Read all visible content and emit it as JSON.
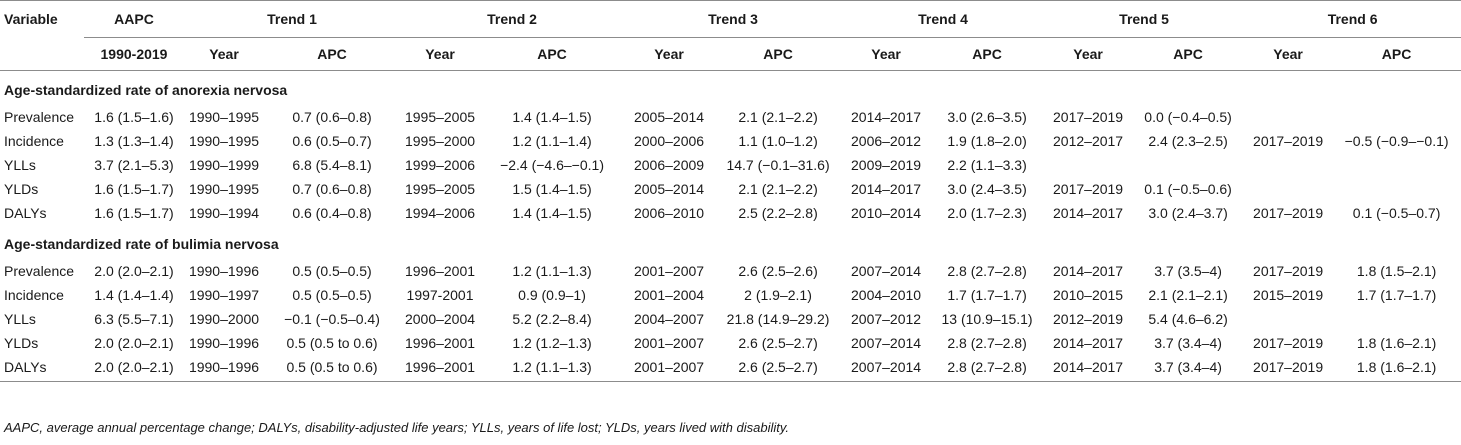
{
  "header": {
    "variable": "Variable",
    "aapc": "AAPC",
    "aapc_period": "1990-2019",
    "trends": [
      "Trend 1",
      "Trend 2",
      "Trend 3",
      "Trend 4",
      "Trend 5",
      "Trend 6"
    ],
    "year": "Year",
    "apc": "APC"
  },
  "sections": [
    {
      "title": "Age-standardized rate of anorexia nervosa",
      "rows": [
        {
          "variable": "Prevalence",
          "aapc": "1.6 (1.5–1.6)",
          "cells": [
            "1990–1995",
            "0.7 (0.6–0.8)",
            "1995–2005",
            "1.4 (1.4–1.5)",
            "2005–2014",
            "2.1 (2.1–2.2)",
            "2014–2017",
            "3.0 (2.6–3.5)",
            "2017–2019",
            "0.0 (−0.4–0.5)",
            "",
            ""
          ]
        },
        {
          "variable": "Incidence",
          "aapc": "1.3 (1.3–1.4)",
          "cells": [
            "1990–1995",
            "0.6 (0.5–0.7)",
            "1995–2000",
            "1.2 (1.1–1.4)",
            "2000–2006",
            "1.1 (1.0–1.2)",
            "2006–2012",
            "1.9 (1.8–2.0)",
            "2012–2017",
            "2.4 (2.3–2.5)",
            "2017–2019",
            "−0.5 (−0.9–−0.1)"
          ]
        },
        {
          "variable": "YLLs",
          "aapc": "3.7 (2.1–5.3)",
          "cells": [
            "1990–1999",
            "6.8 (5.4–8.1)",
            "1999–2006",
            "−2.4 (−4.6–−0.1)",
            "2006–2009",
            "14.7 (−0.1–31.6)",
            "2009–2019",
            "2.2 (1.1–3.3)",
            "",
            "",
            "",
            ""
          ]
        },
        {
          "variable": "YLDs",
          "aapc": "1.6 (1.5–1.7)",
          "cells": [
            "1990–1995",
            "0.7 (0.6–0.8)",
            "1995–2005",
            "1.5 (1.4–1.5)",
            "2005–2014",
            "2.1 (2.1–2.2)",
            "2014–2017",
            "3.0 (2.4–3.5)",
            "2017–2019",
            "0.1 (−0.5–0.6)",
            "",
            ""
          ]
        },
        {
          "variable": "DALYs",
          "aapc": "1.6 (1.5–1.7)",
          "cells": [
            "1990–1994",
            "0.6 (0.4–0.8)",
            "1994–2006",
            "1.4 (1.4–1.5)",
            "2006–2010",
            "2.5 (2.2–2.8)",
            "2010–2014",
            "2.0 (1.7–2.3)",
            "2014–2017",
            "3.0 (2.4–3.7)",
            "2017–2019",
            "0.1 (−0.5–0.7)"
          ]
        }
      ]
    },
    {
      "title": "Age-standardized rate of bulimia nervosa",
      "rows": [
        {
          "variable": "Prevalence",
          "aapc": "2.0 (2.0–2.1)",
          "cells": [
            "1990–1996",
            "0.5 (0.5–0.5)",
            "1996–2001",
            "1.2 (1.1–1.3)",
            "2001–2007",
            "2.6 (2.5–2.6)",
            "2007–2014",
            "2.8 (2.7–2.8)",
            "2014–2017",
            "3.7 (3.5–4)",
            "2017–2019",
            "1.8 (1.5–2.1)"
          ]
        },
        {
          "variable": "Incidence",
          "aapc": "1.4 (1.4–1.4)",
          "cells": [
            "1990–1997",
            "0.5 (0.5–0.5)",
            "1997-2001",
            "0.9 (0.9–1)",
            "2001–2004",
            "2 (1.9–2.1)",
            "2004–2010",
            "1.7 (1.7–1.7)",
            "2010–2015",
            "2.1 (2.1–2.1)",
            "2015–2019",
            "1.7 (1.7–1.7)"
          ]
        },
        {
          "variable": "YLLs",
          "aapc": "6.3 (5.5–7.1)",
          "cells": [
            "1990–2000",
            "−0.1 (−0.5–0.4)",
            "2000–2004",
            "5.2 (2.2–8.4)",
            "2004–2007",
            "21.8 (14.9–29.2)",
            "2007–2012",
            "13 (10.9–15.1)",
            "2012–2019",
            "5.4 (4.6–6.2)",
            "",
            ""
          ]
        },
        {
          "variable": "YLDs",
          "aapc": "2.0 (2.0–2.1)",
          "cells": [
            "1990–1996",
            "0.5 (0.5 to 0.6)",
            "1996–2001",
            "1.2 (1.2–1.3)",
            "2001–2007",
            "2.6 (2.5–2.7)",
            "2007–2014",
            "2.8 (2.7–2.8)",
            "2014–2017",
            "3.7 (3.4–4)",
            "2017–2019",
            "1.8 (1.6–2.1)"
          ]
        },
        {
          "variable": "DALYs",
          "aapc": "2.0 (2.0–2.1)",
          "cells": [
            "1990–1996",
            "0.5 (0.5 to 0.6)",
            "1996–2001",
            "1.2 (1.1–1.3)",
            "2001–2007",
            "2.6 (2.5–2.7)",
            "2007–2014",
            "2.8 (2.7–2.8)",
            "2014–2017",
            "3.7 (3.4–4)",
            "2017–2019",
            "1.8 (1.6–2.1)"
          ]
        }
      ]
    }
  ],
  "footnote": "AAPC, average annual percentage change; DALYs, disability-adjusted life years; YLLs, years of life lost; YLDs, years lived with disability."
}
